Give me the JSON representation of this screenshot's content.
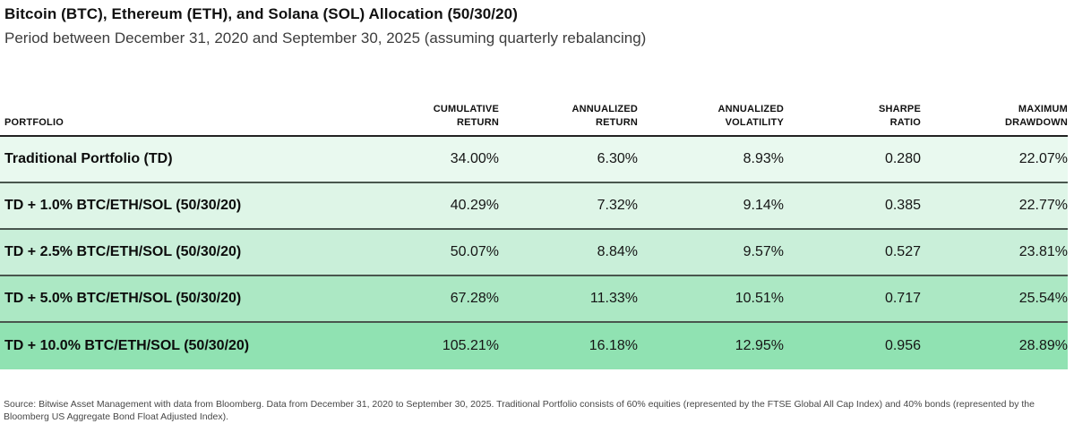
{
  "header": {
    "title": "Bitcoin (BTC), Ethereum (ETH), and Solana (SOL) Allocation (50/30/20)",
    "subtitle": "Period between December 31, 2020 and September 30, 2025 (assuming quarterly rebalancing)"
  },
  "chart_data": {
    "type": "table",
    "title": "Bitcoin (BTC), Ethereum (ETH), and Solana (SOL) Allocation (50/30/20)",
    "columns": [
      "PORTFOLIO",
      "CUMULATIVE\nRETURN",
      "ANNUALIZED\nRETURN",
      "ANNUALIZED\nVOLATILITY",
      "SHARPE\nRATIO",
      "MAXIMUM\nDRAWDOWN"
    ],
    "rows": [
      {
        "portfolio": "Traditional Portfolio (TD)",
        "cumulative_return": "34.00%",
        "annualized_return": "6.30%",
        "annualized_volatility": "8.93%",
        "sharpe_ratio": "0.280",
        "maximum_drawdown": "22.07%",
        "row_bg": "#e9f9ef"
      },
      {
        "portfolio": "TD + 1.0% BTC/ETH/SOL (50/30/20)",
        "cumulative_return": "40.29%",
        "annualized_return": "7.32%",
        "annualized_volatility": "9.14%",
        "sharpe_ratio": "0.385",
        "maximum_drawdown": "22.77%",
        "row_bg": "#def5e7"
      },
      {
        "portfolio": "TD + 2.5% BTC/ETH/SOL (50/30/20)",
        "cumulative_return": "50.07%",
        "annualized_return": "8.84%",
        "annualized_volatility": "9.57%",
        "sharpe_ratio": "0.527",
        "maximum_drawdown": "23.81%",
        "row_bg": "#c9efd9"
      },
      {
        "portfolio": "TD + 5.0% BTC/ETH/SOL (50/30/20)",
        "cumulative_return": "67.28%",
        "annualized_return": "11.33%",
        "annualized_volatility": "10.51%",
        "sharpe_ratio": "0.717",
        "maximum_drawdown": "25.54%",
        "row_bg": "#ace8c4"
      },
      {
        "portfolio": "TD + 10.0% BTC/ETH/SOL (50/30/20)",
        "cumulative_return": "105.21%",
        "annualized_return": "16.18%",
        "annualized_volatility": "12.95%",
        "sharpe_ratio": "0.956",
        "maximum_drawdown": "28.89%",
        "row_bg": "#90e2b2"
      }
    ]
  },
  "footer": {
    "source": "Source: Bitwise Asset Management with data from Bloomberg. Data from December 31, 2020 to September 30, 2025. Traditional Portfolio consists of 60% equities (represented by the FTSE Global All Cap Index) and 40% bonds (represented by the Bloomberg US Aggregate Bond Float Adjusted Index)."
  },
  "colors": {
    "header_rule": "#222222",
    "row_rule": "#49564e",
    "row_shades": [
      "#e9f9ef",
      "#def5e7",
      "#c9efd9",
      "#ace8c4",
      "#90e2b2"
    ],
    "title_text": "#111111",
    "subtitle_text": "#3d3d3d",
    "footer_text": "#474747"
  }
}
